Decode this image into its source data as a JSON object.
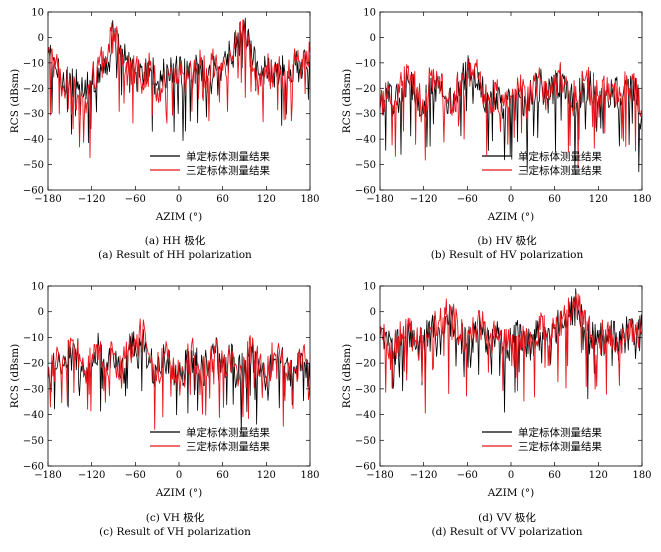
{
  "chart_data": [
    {
      "type": "line",
      "panel": "a",
      "caption_cn": "(a) HH 极化",
      "caption_en": "(a) Result of HH polarization",
      "xlabel": "AZIM (°)",
      "ylabel": "RCS (dBsm)",
      "xlim": [
        -180,
        180
      ],
      "ylim": [
        -60,
        10
      ],
      "xticks": [
        -180,
        -120,
        -60,
        0,
        60,
        120,
        180
      ],
      "yticks": [
        10,
        0,
        -10,
        -20,
        -30,
        -40,
        -50,
        -60
      ],
      "legend_position": "lower-right",
      "series": [
        {
          "name": "单定标体测量结果",
          "color": "#000000",
          "x": [
            -180,
            -170,
            -160,
            -150,
            -140,
            -130,
            -120,
            -110,
            -100,
            -90,
            -80,
            -70,
            -60,
            -50,
            -40,
            -30,
            -20,
            -10,
            0,
            10,
            20,
            30,
            40,
            50,
            60,
            70,
            80,
            90,
            100,
            110,
            120,
            130,
            140,
            150,
            160,
            170,
            180
          ],
          "y": [
            -6,
            -12,
            -18,
            -14,
            -20,
            -22,
            -17,
            -12,
            -8,
            1,
            -3,
            -12,
            -14,
            -16,
            -12,
            -18,
            -15,
            -14,
            -13,
            -16,
            -14,
            -12,
            -15,
            -10,
            -12,
            -6,
            -4,
            2,
            -8,
            -15,
            -12,
            -14,
            -12,
            -15,
            -11,
            -13,
            -7
          ]
        },
        {
          "name": "三定标体测量结果",
          "color": "#e8141b",
          "x": [
            -180,
            -170,
            -160,
            -150,
            -140,
            -130,
            -120,
            -110,
            -100,
            -90,
            -80,
            -70,
            -60,
            -50,
            -40,
            -30,
            -20,
            -10,
            0,
            10,
            20,
            30,
            40,
            50,
            60,
            70,
            80,
            90,
            100,
            110,
            120,
            130,
            140,
            150,
            160,
            170,
            180
          ],
          "y": [
            -5,
            -11,
            -20,
            -15,
            -24,
            -30,
            -18,
            -11,
            -9,
            2,
            -4,
            -14,
            -13,
            -18,
            -11,
            -20,
            -16,
            -13,
            -15,
            -17,
            -13,
            -11,
            -16,
            -9,
            -13,
            -5,
            -3,
            3,
            -9,
            -17,
            -11,
            -15,
            -13,
            -16,
            -10,
            -12,
            -6
          ]
        }
      ]
    },
    {
      "type": "line",
      "panel": "b",
      "caption_cn": "(b) HV 极化",
      "caption_en": "(b) Result of HV polarization",
      "xlabel": "AZIM (°)",
      "ylabel": "RCS (dBsm)",
      "xlim": [
        -180,
        180
      ],
      "ylim": [
        -60,
        10
      ],
      "xticks": [
        -180,
        -120,
        -60,
        0,
        60,
        120,
        180
      ],
      "yticks": [
        10,
        0,
        -10,
        -20,
        -30,
        -40,
        -50,
        -60
      ],
      "legend_position": "lower-right",
      "series": [
        {
          "name": "单定标体测量结果",
          "color": "#000000",
          "x": [
            -180,
            -170,
            -160,
            -150,
            -140,
            -130,
            -120,
            -110,
            -100,
            -90,
            -80,
            -70,
            -60,
            -50,
            -40,
            -30,
            -20,
            -10,
            0,
            10,
            20,
            30,
            40,
            50,
            60,
            70,
            80,
            90,
            100,
            110,
            120,
            130,
            140,
            150,
            160,
            170,
            180
          ],
          "y": [
            -28,
            -24,
            -26,
            -20,
            -18,
            -22,
            -30,
            -16,
            -20,
            -24,
            -28,
            -18,
            -14,
            -12,
            -20,
            -26,
            -22,
            -28,
            -24,
            -20,
            -26,
            -22,
            -18,
            -24,
            -20,
            -16,
            -22,
            -26,
            -18,
            -20,
            -24,
            -22,
            -20,
            -24,
            -18,
            -22,
            -30
          ]
        },
        {
          "name": "三定标体测量结果",
          "color": "#e8141b",
          "x": [
            -180,
            -170,
            -160,
            -150,
            -140,
            -130,
            -120,
            -110,
            -100,
            -90,
            -80,
            -70,
            -60,
            -50,
            -40,
            -30,
            -20,
            -10,
            0,
            10,
            20,
            30,
            40,
            50,
            60,
            70,
            80,
            90,
            100,
            110,
            120,
            130,
            140,
            150,
            160,
            170,
            180
          ],
          "y": [
            -27,
            -23,
            -25,
            -19,
            -17,
            -21,
            -29,
            -15,
            -19,
            -23,
            -27,
            -17,
            -13,
            -11,
            -19,
            -25,
            -21,
            -27,
            -23,
            -19,
            -25,
            -21,
            -17,
            -23,
            -19,
            -15,
            -21,
            -25,
            -17,
            -19,
            -23,
            -21,
            -19,
            -23,
            -17,
            -21,
            -29
          ]
        }
      ]
    },
    {
      "type": "line",
      "panel": "c",
      "caption_cn": "(c) VH 极化",
      "caption_en": "(c) Result of VH polarization",
      "xlabel": "AZIM (°)",
      "ylabel": "RCS (dBsm)",
      "xlim": [
        -180,
        180
      ],
      "ylim": [
        -60,
        10
      ],
      "xticks": [
        -180,
        -120,
        -60,
        0,
        60,
        120,
        180
      ],
      "yticks": [
        10,
        0,
        -10,
        -20,
        -30,
        -40,
        -50,
        -60
      ],
      "legend_position": "lower-right",
      "series": [
        {
          "name": "单定标体测量结果",
          "color": "#000000",
          "x": [
            -180,
            -170,
            -160,
            -150,
            -140,
            -130,
            -120,
            -110,
            -100,
            -90,
            -80,
            -70,
            -60,
            -50,
            -40,
            -30,
            -20,
            -10,
            0,
            10,
            20,
            30,
            40,
            50,
            60,
            70,
            80,
            90,
            100,
            110,
            120,
            130,
            140,
            150,
            160,
            170,
            180
          ],
          "y": [
            -26,
            -22,
            -20,
            -18,
            -16,
            -24,
            -20,
            -14,
            -22,
            -18,
            -26,
            -16,
            -12,
            -10,
            -20,
            -24,
            -18,
            -22,
            -26,
            -20,
            -18,
            -24,
            -20,
            -16,
            -22,
            -18,
            -24,
            -20,
            -16,
            -22,
            -26,
            -18,
            -20,
            -22,
            -24,
            -18,
            -28
          ]
        },
        {
          "name": "三定标体测量结果",
          "color": "#e8141b",
          "x": [
            -180,
            -170,
            -160,
            -150,
            -140,
            -130,
            -120,
            -110,
            -100,
            -90,
            -80,
            -70,
            -60,
            -50,
            -40,
            -30,
            -20,
            -10,
            0,
            10,
            20,
            30,
            40,
            50,
            60,
            70,
            80,
            90,
            100,
            110,
            120,
            130,
            140,
            150,
            160,
            170,
            180
          ],
          "y": [
            -25,
            -21,
            -19,
            -17,
            -15,
            -23,
            -19,
            -13,
            -21,
            -17,
            -25,
            -15,
            -11,
            -9,
            -19,
            -23,
            -17,
            -21,
            -25,
            -19,
            -17,
            -23,
            -19,
            -15,
            -21,
            -17,
            -23,
            -19,
            -15,
            -21,
            -25,
            -17,
            -19,
            -21,
            -23,
            -17,
            -27
          ]
        }
      ]
    },
    {
      "type": "line",
      "panel": "d",
      "caption_cn": "(d) VV 极化",
      "caption_en": "(d) Result of VV polarization",
      "xlabel": "AZIM (°)",
      "ylabel": "RCS (dBsm)",
      "xlim": [
        -180,
        180
      ],
      "ylim": [
        -60,
        10
      ],
      "xticks": [
        -180,
        -120,
        -60,
        0,
        60,
        120,
        180
      ],
      "yticks": [
        10,
        0,
        -10,
        -20,
        -30,
        -40,
        -50,
        -60
      ],
      "legend_position": "lower-right",
      "series": [
        {
          "name": "单定标体测量结果",
          "color": "#000000",
          "x": [
            -180,
            -170,
            -160,
            -150,
            -140,
            -130,
            -120,
            -110,
            -100,
            -90,
            -80,
            -70,
            -60,
            -50,
            -40,
            -30,
            -20,
            -10,
            0,
            10,
            20,
            30,
            40,
            50,
            60,
            70,
            80,
            90,
            100,
            110,
            120,
            130,
            140,
            150,
            160,
            170,
            180
          ],
          "y": [
            -10,
            -12,
            -14,
            -10,
            -8,
            -14,
            -12,
            -8,
            -6,
            -2,
            -4,
            -10,
            -12,
            -8,
            -6,
            -12,
            -10,
            -14,
            -12,
            -10,
            -14,
            -12,
            -8,
            -10,
            -6,
            -4,
            -2,
            4,
            -6,
            -10,
            -12,
            -8,
            -10,
            -12,
            -8,
            -10,
            -8
          ]
        },
        {
          "name": "三定标体测量结果",
          "color": "#e8141b",
          "x": [
            -180,
            -170,
            -160,
            -150,
            -140,
            -130,
            -120,
            -110,
            -100,
            -90,
            -80,
            -70,
            -60,
            -50,
            -40,
            -30,
            -20,
            -10,
            0,
            10,
            20,
            30,
            40,
            50,
            60,
            70,
            80,
            90,
            100,
            110,
            120,
            130,
            140,
            150,
            160,
            170,
            180
          ],
          "y": [
            -9,
            -11,
            -13,
            -9,
            -7,
            -13,
            -11,
            -7,
            -5,
            -1,
            -3,
            -9,
            -11,
            -7,
            -5,
            -11,
            -9,
            -13,
            -11,
            -9,
            -13,
            -11,
            -7,
            -9,
            -5,
            -3,
            -1,
            5,
            -5,
            -9,
            -11,
            -7,
            -9,
            -11,
            -7,
            -9,
            -7
          ]
        }
      ]
    }
  ]
}
